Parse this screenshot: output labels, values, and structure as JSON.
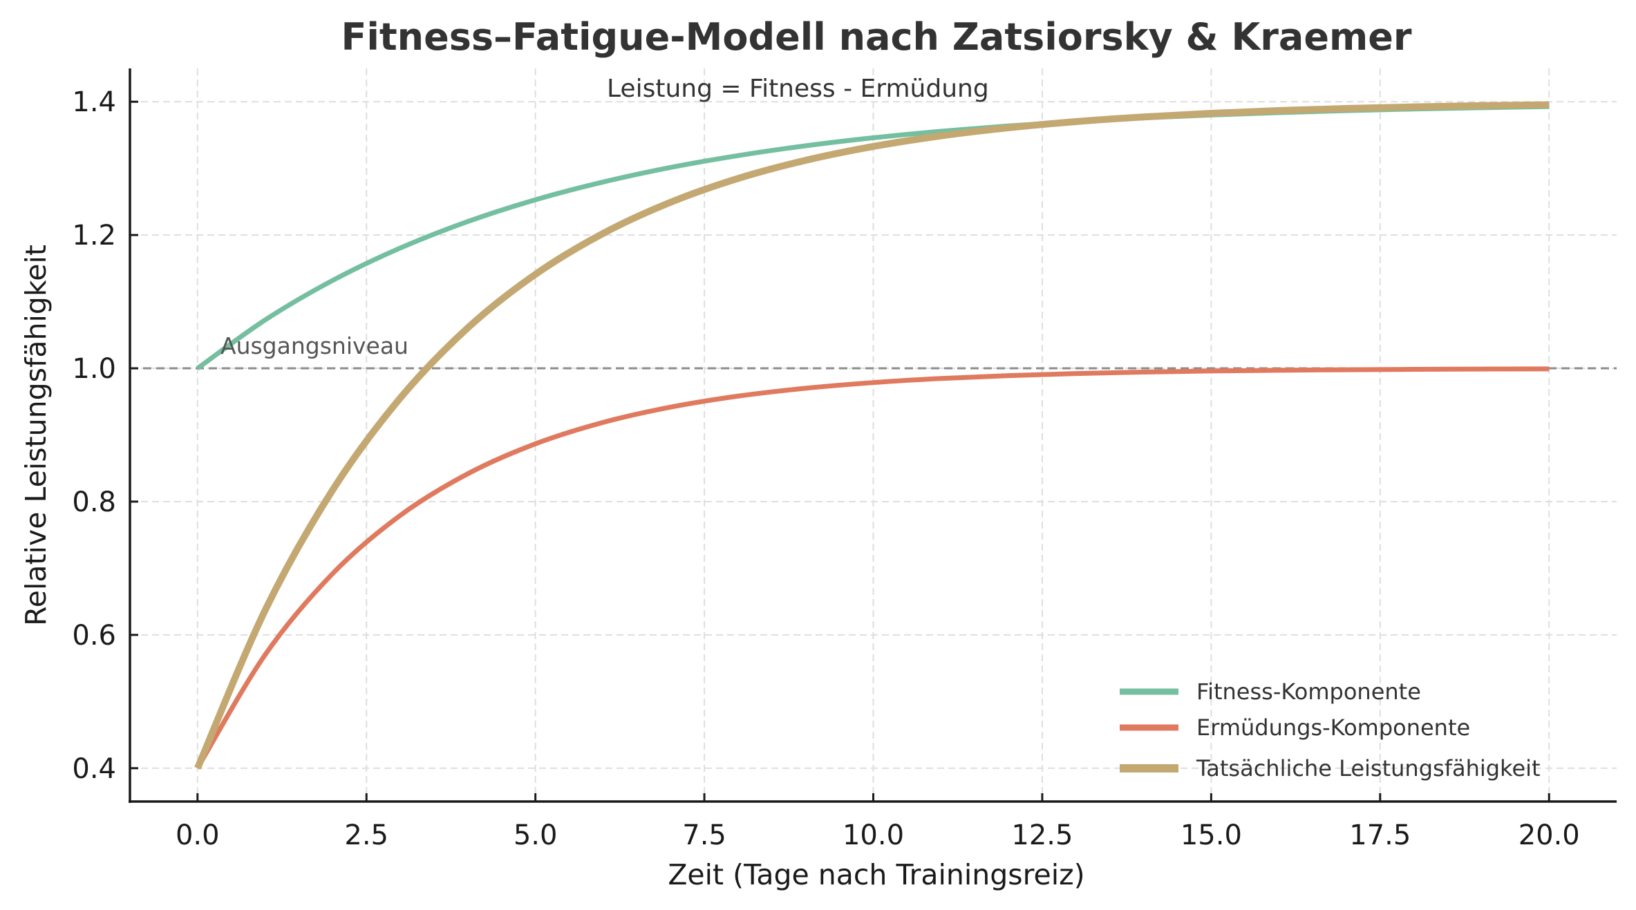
{
  "chart_data": {
    "type": "line",
    "title": "Fitness–Fatigue-Modell nach Zatsiorsky & Kraemer",
    "xlabel": "Zeit (Tage nach Trainingsreiz)",
    "ylabel": "Relative Leistungsfähigkeit",
    "xlim": [
      -1,
      21
    ],
    "ylim": [
      0.35,
      1.45
    ],
    "xticks": [
      "0.0",
      "2.5",
      "5.0",
      "7.5",
      "10.0",
      "12.5",
      "15.0",
      "17.5",
      "20.0"
    ],
    "xtick_values": [
      0,
      2.5,
      5,
      7.5,
      10,
      12.5,
      15,
      17.5,
      20
    ],
    "yticks": [
      "0.4",
      "0.6",
      "0.8",
      "1.0",
      "1.2",
      "1.4"
    ],
    "ytick_values": [
      0.4,
      0.6,
      0.8,
      1.0,
      1.2,
      1.4
    ],
    "grid": true,
    "legend_position": "bottom-right",
    "annotations": [
      {
        "text": "Leistung = Fitness - Ermüdung"
      },
      {
        "text": "Ausgangsniveau",
        "y": 1.0
      }
    ],
    "reference_line": {
      "y": 1.0,
      "style": "dashed",
      "color": "#8c8c8c"
    },
    "x": [
      0,
      1,
      2,
      3,
      4,
      5,
      6,
      7,
      8,
      9,
      10,
      11,
      12,
      13,
      14,
      15,
      16,
      17,
      18,
      19,
      20
    ],
    "series": [
      {
        "name": "Fitness-Komponente",
        "color": "#74bfa0",
        "values": [
          1.0,
          1.0725,
          1.1319,
          1.1805,
          1.2203,
          1.2529,
          1.2795,
          1.3014,
          1.3192,
          1.3339,
          1.3459,
          1.3557,
          1.3637,
          1.3703,
          1.3757,
          1.3801,
          1.3837,
          1.3866,
          1.3891,
          1.391,
          1.3927
        ]
      },
      {
        "name": "Ermüdungs-Komponente",
        "color": "#e07a5f",
        "values": [
          0.4,
          0.5701,
          0.692,
          0.7793,
          0.8418,
          0.8867,
          0.9188,
          0.9418,
          0.9583,
          0.9701,
          0.9786,
          0.9847,
          0.989,
          0.9921,
          0.9944,
          0.996,
          0.9971,
          0.9979,
          0.9985,
          0.9989,
          0.9992
        ]
      },
      {
        "name": "Tatsächliche Leistungsfähigkeit",
        "color": "#c4a872",
        "values": [
          0.4,
          0.6368,
          0.8175,
          0.9554,
          1.0607,
          1.141,
          1.2023,
          1.2491,
          1.2849,
          1.3121,
          1.3329,
          1.3488,
          1.3609,
          1.3702,
          1.3772,
          1.3826,
          1.3867,
          1.3899,
          1.3923,
          1.3941,
          1.3955
        ]
      }
    ]
  }
}
